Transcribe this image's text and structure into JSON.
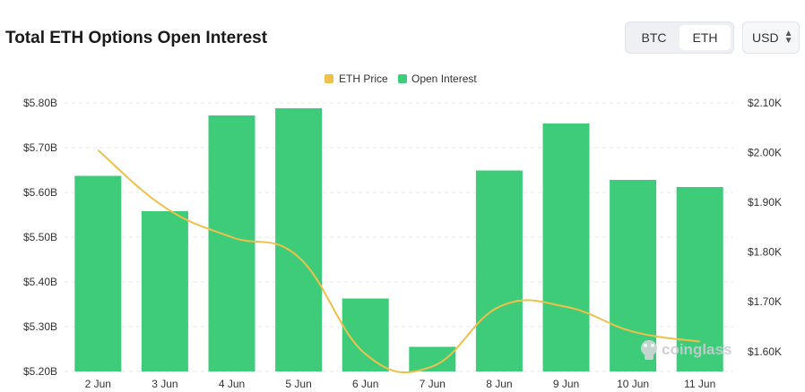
{
  "header": {
    "title": "Total ETH Options Open Interest",
    "toggle": {
      "options": [
        "BTC",
        "ETH"
      ],
      "active": "ETH"
    },
    "currency": "USD"
  },
  "watermark": "coinglass",
  "colors": {
    "open_interest": "#3ecc7b",
    "eth_price": "#efc04a",
    "grid": "#e8e8e8"
  },
  "chart_data": {
    "type": "bar",
    "categories": [
      "2 Jun",
      "3 Jun",
      "4 Jun",
      "5 Jun",
      "6 Jun",
      "7 Jun",
      "8 Jun",
      "9 Jun",
      "10 Jun",
      "11 Jun"
    ],
    "series": [
      {
        "name": "Open Interest",
        "type": "bar",
        "axis": "left",
        "values": [
          5.637,
          5.558,
          5.772,
          5.788,
          5.363,
          5.255,
          5.649,
          5.754,
          5.628,
          5.612
        ]
      },
      {
        "name": "ETH Price",
        "type": "line",
        "axis": "right",
        "values": [
          2.005,
          1.89,
          1.83,
          1.79,
          1.595,
          1.57,
          1.69,
          1.69,
          1.64,
          1.62
        ]
      }
    ],
    "left_axis": {
      "ylim": [
        5.2,
        5.8
      ],
      "ticks": [
        "$5.20B",
        "$5.30B",
        "$5.40B",
        "$5.50B",
        "$5.60B",
        "$5.70B",
        "$5.80B"
      ]
    },
    "right_axis": {
      "ylim": [
        1.56,
        2.1
      ],
      "ticks": [
        "$1.60K",
        "$1.70K",
        "$1.80K",
        "$1.90K",
        "$2.00K",
        "$2.10K"
      ]
    },
    "grid": true,
    "legend_position": "top-center"
  }
}
